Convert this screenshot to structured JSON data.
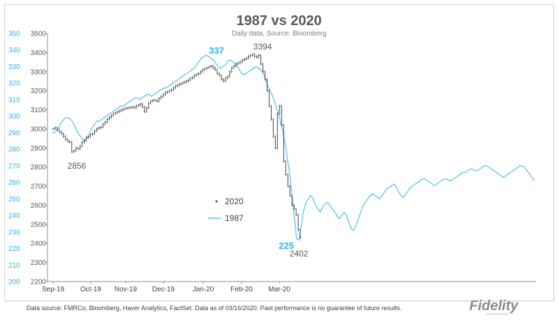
{
  "chart_data": {
    "type": "line",
    "title": "1987 vs 2020",
    "subtitle": "Daily data.  Source: Bloomberg",
    "left_axis": {
      "ticks": [
        3500,
        3400,
        3300,
        3200,
        3100,
        3000,
        2900,
        2800,
        2700,
        2600,
        2500,
        2400,
        2300,
        2200
      ],
      "range": [
        2200,
        3500
      ],
      "color": "#595959"
    },
    "right_axis": {
      "ticks": [
        350,
        340,
        330,
        320,
        310,
        300,
        290,
        280,
        270,
        260,
        250,
        240,
        230,
        220,
        210,
        200
      ],
      "range": [
        200,
        350
      ],
      "color": "#29b3e8"
    },
    "x_ticks": [
      "Sep-19",
      "Oct-19",
      "Nov-19",
      "Dec-19",
      "Jan-20",
      "Feb-20",
      "Mar-20"
    ],
    "series": [
      {
        "name": "2020",
        "axis": "left",
        "color": "#404040",
        "style": "ohlc",
        "values": [
          3000,
          3005,
          2995,
          2985,
          2975,
          2960,
          2945,
          2935,
          2930,
          2880,
          2885,
          2900,
          2895,
          2910,
          2930,
          2940,
          2955,
          2960,
          2970,
          2975,
          2990,
          3000,
          3005,
          3010,
          3025,
          3035,
          3050,
          3060,
          3070,
          3080,
          3085,
          3090,
          3095,
          3100,
          3105,
          3108,
          3110,
          3112,
          3115,
          3110,
          3120,
          3125,
          3130,
          3115,
          3090,
          3110,
          3135,
          3145,
          3150,
          3150,
          3145,
          3160,
          3170,
          3180,
          3190,
          3195,
          3200,
          3205,
          3215,
          3225,
          3230,
          3235,
          3240,
          3245,
          3250,
          3255,
          3265,
          3270,
          3280,
          3285,
          3290,
          3300,
          3310,
          3315,
          3320,
          3325,
          3330,
          3320,
          3310,
          3290,
          3280,
          3260,
          3250,
          3265,
          3275,
          3300,
          3320,
          3330,
          3340,
          3345,
          3350,
          3360,
          3365,
          3370,
          3380,
          3385,
          3390,
          3380,
          3375,
          3385,
          3340,
          3300,
          3260,
          3200,
          3120,
          3050,
          2960,
          2900,
          3080,
          3120,
          3020,
          2830,
          2760,
          2700,
          2650,
          2600,
          2580,
          2550,
          2470,
          2430
        ]
      },
      {
        "name": "1987",
        "axis": "right",
        "color": "#5bc4ef",
        "style": "line",
        "values": [
          290,
          290,
          291,
          293,
          296,
          298,
          299,
          299,
          298,
          296,
          293,
          290,
          288,
          286,
          285,
          287,
          290,
          293,
          295,
          297,
          297,
          298,
          299,
          300,
          301,
          302,
          303,
          304,
          305,
          306,
          306,
          307,
          308,
          309,
          310,
          311,
          311,
          310,
          311,
          312,
          313,
          313,
          312,
          313,
          314,
          315,
          316,
          317,
          317,
          318,
          319,
          320,
          321,
          322,
          323,
          324,
          325,
          326,
          327,
          328,
          329,
          331,
          333,
          335,
          336,
          337,
          336,
          335,
          334,
          332,
          330,
          329,
          330,
          331,
          333,
          334,
          333,
          332,
          330,
          328,
          326,
          325,
          326,
          327,
          328,
          329,
          330,
          329,
          328,
          326,
          322,
          318,
          315,
          312,
          308,
          303,
          298,
          292,
          285,
          276,
          266,
          254,
          240,
          226,
          225,
          234,
          243,
          248,
          250,
          252,
          250,
          246,
          244,
          242,
          245,
          247,
          248,
          246,
          244,
          242,
          240,
          238,
          240,
          242,
          240,
          236,
          232,
          231,
          234,
          238,
          242,
          246,
          248,
          250,
          252,
          253,
          252,
          251,
          250,
          252,
          254,
          256,
          257,
          258,
          259,
          257,
          254,
          252,
          251,
          253,
          255,
          257,
          258,
          259,
          260,
          261,
          262,
          262,
          261,
          260,
          259,
          258,
          259,
          260,
          261,
          262,
          262,
          261,
          261,
          262,
          263,
          264,
          265,
          266,
          266,
          267,
          268,
          268,
          267,
          267,
          268,
          269,
          270,
          270,
          269,
          268,
          267,
          266,
          265,
          264,
          263,
          264,
          265,
          266,
          267,
          268,
          269,
          270,
          270,
          269,
          267,
          265,
          263,
          261
        ]
      }
    ],
    "annotations": [
      {
        "text": "337",
        "color": "#29b3e8"
      },
      {
        "text": "3394",
        "color": "#595959"
      },
      {
        "text": "2856",
        "color": "#595959"
      },
      {
        "text": "225",
        "color": "#29b3e8"
      },
      {
        "text": "2402",
        "color": "#595959"
      }
    ],
    "legend": [
      {
        "label": "2020",
        "marker": "dot"
      },
      {
        "label": "1987",
        "marker": "line"
      }
    ]
  },
  "footer": {
    "source_text": "Data source: FMRCo, Bloomberg, Haver Analytics, FactSet.  Data as of 03/16/2020. Past performance is no guarantee of future results.",
    "logo_text": "Fidelity",
    "logo_sub": "INVESTMENTS"
  }
}
